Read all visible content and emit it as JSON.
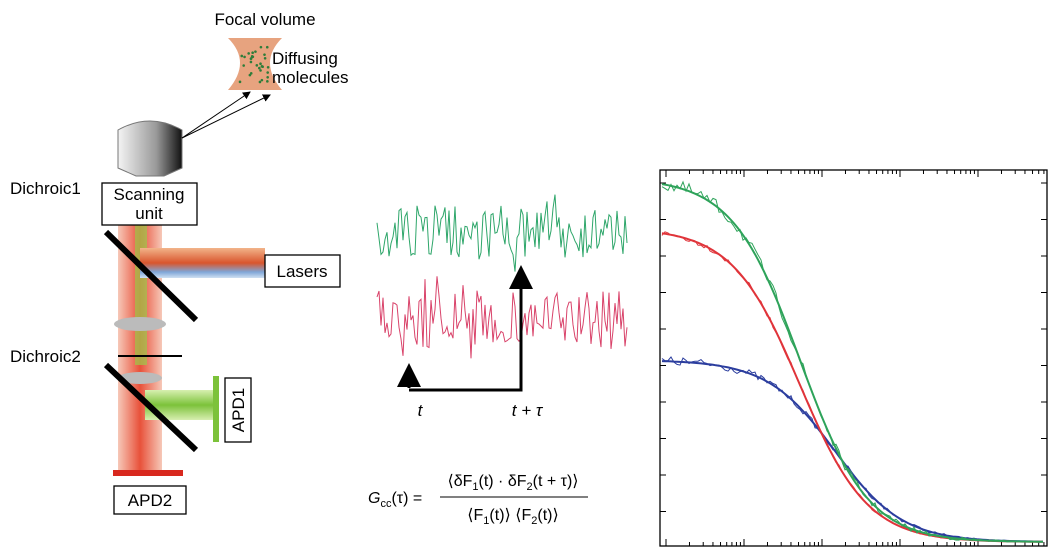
{
  "focal_volume": {
    "title": "Focal volume",
    "label": [
      "Diffusing",
      "molecules"
    ]
  },
  "microscope": {
    "scanning_unit": [
      "Scanning",
      "unit"
    ],
    "dichroic1": "Dichroic1",
    "lasers": "Lasers",
    "dichroic2": "Dichroic2",
    "apd1": "APD1",
    "apd2": "APD2"
  },
  "traces": {
    "t": "t",
    "t_tau": "t + τ"
  },
  "formula": {
    "lhs": [
      "G",
      "cc",
      "(τ) ="
    ],
    "numerator": [
      "⟨δF",
      "1",
      "(t) · δF",
      "2",
      "(t + τ)⟩"
    ],
    "denominator": [
      "⟨F",
      "1",
      "(t)⟩ ⟨F",
      "2",
      "(t)⟩"
    ]
  }
}
